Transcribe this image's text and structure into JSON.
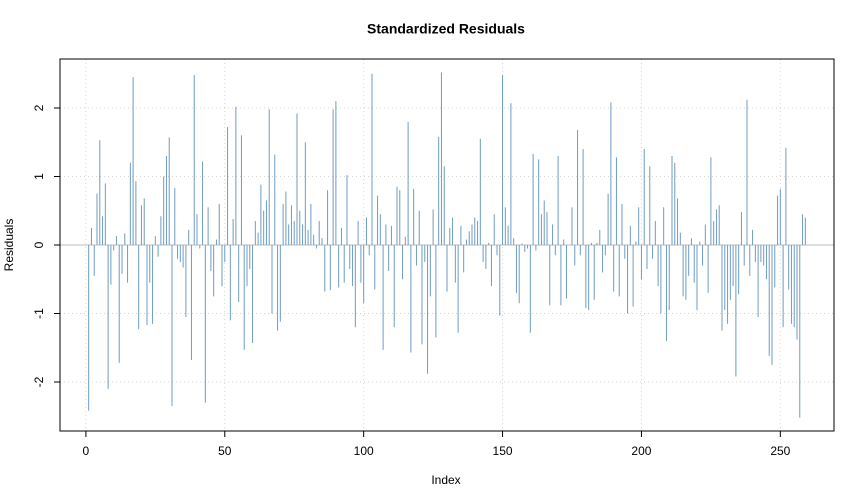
{
  "chart_data": {
    "type": "stem",
    "title": "Standardized Residuals",
    "xlabel": "Index",
    "ylabel": "Residuals",
    "color": "#6f9dc4",
    "grid": true,
    "hline": 0,
    "xlim": [
      -9.32,
      269.32
    ],
    "xticks": [
      0,
      50,
      100,
      150,
      200,
      250
    ],
    "ylim": [
      -2.715,
      2.715
    ],
    "yticks": [
      -2,
      -1,
      0,
      1,
      2
    ],
    "x": [
      1,
      2,
      3,
      4,
      5,
      6,
      7,
      8,
      9,
      10,
      11,
      12,
      13,
      14,
      15,
      16,
      17,
      18,
      19,
      20,
      21,
      22,
      23,
      24,
      25,
      26,
      27,
      28,
      29,
      30,
      31,
      32,
      33,
      34,
      35,
      36,
      37,
      38,
      39,
      40,
      41,
      42,
      43,
      44,
      45,
      46,
      47,
      48,
      49,
      50,
      51,
      52,
      53,
      54,
      55,
      56,
      57,
      58,
      59,
      60,
      61,
      62,
      63,
      64,
      65,
      66,
      67,
      68,
      69,
      70,
      71,
      72,
      73,
      74,
      75,
      76,
      77,
      78,
      79,
      80,
      81,
      82,
      83,
      84,
      85,
      86,
      87,
      88,
      89,
      90,
      91,
      92,
      93,
      94,
      95,
      96,
      97,
      98,
      99,
      100,
      101,
      102,
      103,
      104,
      105,
      106,
      107,
      108,
      109,
      110,
      111,
      112,
      113,
      114,
      115,
      116,
      117,
      118,
      119,
      120,
      121,
      122,
      123,
      124,
      125,
      126,
      127,
      128,
      129,
      130,
      131,
      132,
      133,
      134,
      135,
      136,
      137,
      138,
      139,
      140,
      141,
      142,
      143,
      144,
      145,
      146,
      147,
      148,
      149,
      150,
      151,
      152,
      153,
      154,
      155,
      156,
      157,
      158,
      159,
      160,
      161,
      162,
      163,
      164,
      165,
      166,
      167,
      168,
      169,
      170,
      171,
      172,
      173,
      174,
      175,
      176,
      177,
      178,
      179,
      180,
      181,
      182,
      183,
      184,
      185,
      186,
      187,
      188,
      189,
      190,
      191,
      192,
      193,
      194,
      195,
      196,
      197,
      198,
      199,
      200,
      201,
      202,
      203,
      204,
      205,
      206,
      207,
      208,
      209,
      210,
      211,
      212,
      213,
      214,
      215,
      216,
      217,
      218,
      219,
      220,
      221,
      222,
      223,
      224,
      225,
      226,
      227,
      228,
      229,
      230,
      231,
      232,
      233,
      234,
      235,
      236,
      237,
      238,
      239,
      240,
      241,
      242,
      243,
      244,
      245,
      246,
      247,
      248,
      249,
      250,
      251,
      252,
      253,
      254,
      255,
      256,
      257,
      258,
      259
    ],
    "values": [
      -2.42,
      0.25,
      -0.45,
      0.75,
      1.53,
      0.42,
      0.9,
      -2.1,
      -0.58,
      -0.08,
      0.13,
      -1.72,
      -0.42,
      0.17,
      -0.55,
      1.2,
      2.45,
      0.93,
      -1.23,
      0.58,
      0.68,
      -1.17,
      -0.55,
      -1.15,
      0.13,
      -0.17,
      0.42,
      1.0,
      1.3,
      1.57,
      -2.35,
      0.83,
      -0.2,
      -0.25,
      -0.33,
      -1.05,
      0.22,
      -1.68,
      2.48,
      0.45,
      -0.05,
      1.22,
      -2.3,
      0.55,
      -0.38,
      -0.75,
      0.08,
      0.6,
      -0.6,
      -0.25,
      1.72,
      -1.1,
      0.38,
      2.02,
      -0.83,
      1.6,
      -1.53,
      -0.6,
      -0.35,
      -1.43,
      0.35,
      0.18,
      0.88,
      0.5,
      0.65,
      1.98,
      -1.0,
      1.32,
      -1.25,
      -1.12,
      0.6,
      0.78,
      0.3,
      0.58,
      0.35,
      1.92,
      0.5,
      0.3,
      1.5,
      0.22,
      0.6,
      0.15,
      -0.05,
      0.35,
      0.1,
      -0.68,
      0.8,
      -0.66,
      1.98,
      2.1,
      -0.62,
      0.25,
      -0.55,
      1.02,
      -0.35,
      -0.6,
      -1.2,
      0.35,
      -0.55,
      -0.85,
      0.4,
      -0.15,
      2.5,
      -0.65,
      0.72,
      0.45,
      -1.53,
      0.3,
      -0.38,
      0.28,
      -1.2,
      0.85,
      0.8,
      -0.5,
      0.12,
      1.8,
      -1.57,
      0.82,
      -0.3,
      0.5,
      -1.45,
      -0.25,
      -1.88,
      -0.75,
      0.52,
      -1.35,
      1.58,
      2.52,
      1.15,
      -0.68,
      0.25,
      0.4,
      -0.55,
      -1.28,
      0.28,
      -0.4,
      0.08,
      0.2,
      0.3,
      0.4,
      0.35,
      1.55,
      -0.25,
      -0.35,
      0.03,
      -0.6,
      0.45,
      -0.15,
      -1.03,
      2.48,
      0.55,
      0.28,
      2.07,
      0.1,
      -0.7,
      -0.85,
      0.02,
      -0.1,
      -0.05,
      -1.28,
      1.33,
      -0.08,
      1.25,
      0.45,
      0.65,
      0.48,
      -0.88,
      0.3,
      -0.15,
      1.3,
      -0.88,
      0.08,
      -0.78,
      0.0,
      0.55,
      -0.3,
      1.68,
      -0.15,
      1.4,
      -0.92,
      -0.95,
      0.03,
      -0.8,
      0.03,
      0.22,
      -0.4,
      -0.15,
      0.75,
      2.08,
      -0.68,
      1.28,
      -0.75,
      0.6,
      -0.2,
      -1.0,
      0.28,
      -0.9,
      0.05,
      0.55,
      -0.5,
      1.4,
      -0.35,
      1.15,
      -0.2,
      0.35,
      -0.6,
      -1.0,
      0.55,
      -1.4,
      -0.95,
      1.3,
      1.2,
      0.68,
      0.18,
      -0.75,
      -0.8,
      -0.45,
      0.1,
      -0.55,
      -0.95,
      0.05,
      -0.3,
      0.3,
      -0.7,
      1.28,
      0.35,
      0.52,
      0.58,
      -1.25,
      -0.95,
      -1.15,
      -0.8,
      -0.6,
      -1.92,
      -0.72,
      0.48,
      -0.3,
      2.12,
      -0.45,
      0.22,
      -0.25,
      -1.05,
      -0.25,
      -0.3,
      -0.5,
      -1.62,
      -1.75,
      -0.62,
      0.72,
      0.82,
      -1.2,
      1.42,
      -0.65,
      -1.15,
      -1.2,
      -1.38,
      -2.52,
      0.45,
      0.4
    ]
  }
}
